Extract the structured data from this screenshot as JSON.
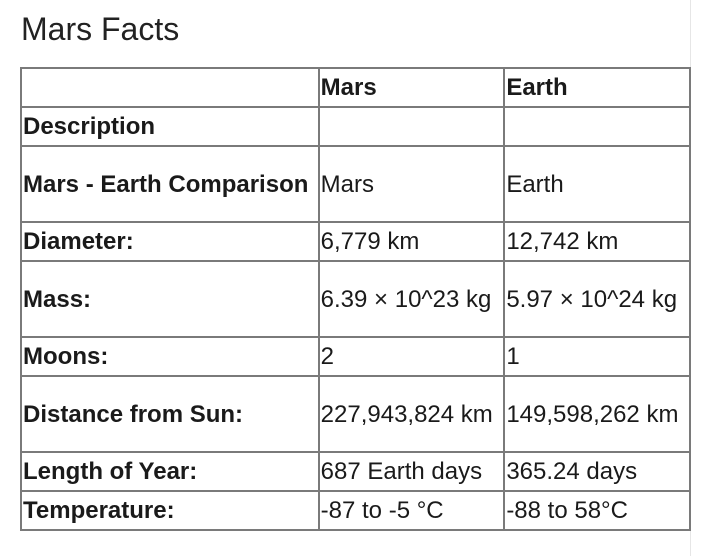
{
  "page": {
    "title": "Mars Facts"
  },
  "table": {
    "headers": [
      "",
      "Mars",
      "Earth"
    ],
    "rows": [
      {
        "label": "Description",
        "mars": "",
        "earth": ""
      },
      {
        "label": "Mars - Earth Comparison",
        "mars": "Mars",
        "earth": "Earth"
      },
      {
        "label": "Diameter:",
        "mars": "6,779 km",
        "earth": "12,742 km"
      },
      {
        "label": "Mass:",
        "mars": "6.39 × 10^23 kg",
        "earth": "5.97 × 10^24 kg"
      },
      {
        "label": "Moons:",
        "mars": "2",
        "earth": "1"
      },
      {
        "label": "Distance from Sun:",
        "mars": "227,943,824 km",
        "earth": "149,598,262 km"
      },
      {
        "label": "Length of Year:",
        "mars": "687 Earth days",
        "earth": "365.24 days"
      },
      {
        "label": "Temperature:",
        "mars": "-87 to -5 °C",
        "earth": "-88 to 58°C"
      }
    ]
  }
}
